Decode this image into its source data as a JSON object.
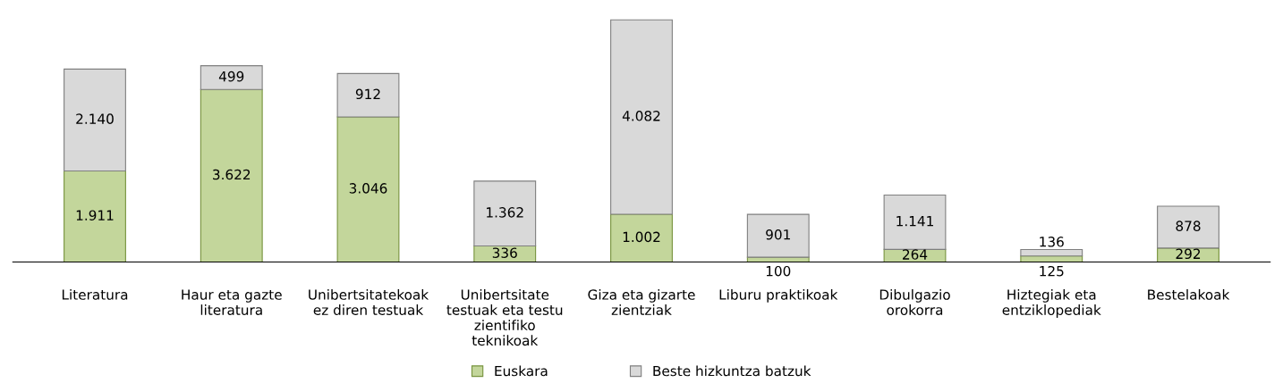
{
  "chart_data": {
    "type": "bar",
    "stacked": true,
    "legend": "bottom",
    "grid": false,
    "categories": [
      "Literatura",
      "Haur eta gazte\nliteratura",
      "Unibertsitatekoak\nez diren testuak",
      "Unibertsitate\ntestuak eta testu\nzientifiko\nteknikoak",
      "Giza eta gizarte\nzientziak",
      "Liburu praktikoak",
      "Dibulgazio\norokorra",
      "Hiztegiak eta\nentziklopediak",
      "Bestelakoak"
    ],
    "series": [
      {
        "name": "Euskara",
        "color": "#c3d69b",
        "values": [
          1911,
          3622,
          3046,
          336,
          1002,
          100,
          264,
          125,
          292
        ],
        "value_labels": [
          "1.911",
          "3.622",
          "3.046",
          "336",
          "1.002",
          "100",
          "264",
          "125",
          "292"
        ]
      },
      {
        "name": "Beste hizkuntza batzuk",
        "color": "#d9d9d9",
        "values": [
          2140,
          499,
          912,
          1362,
          4082,
          901,
          1141,
          136,
          878
        ],
        "value_labels": [
          "2.140",
          "499",
          "912",
          "1.362",
          "4.082",
          "901",
          "1.141",
          "136",
          "878"
        ]
      }
    ]
  }
}
